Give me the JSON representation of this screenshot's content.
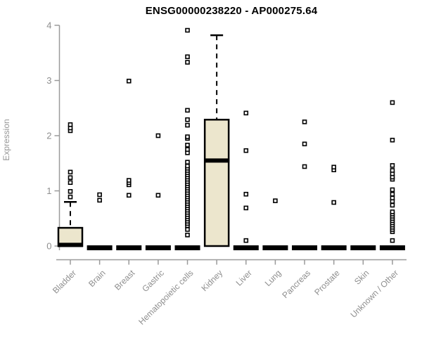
{
  "chart_data": {
    "type": "boxplot",
    "title": "ENSG00000238220 - AP000275.64",
    "ylabel": "Expression",
    "xlabel": "",
    "ylim": [
      0,
      4
    ],
    "yticks": [
      0,
      1,
      2,
      3,
      4
    ],
    "grid": false,
    "legend": "none",
    "categories": [
      "Bladder",
      "Brain",
      "Breast",
      "Gastric",
      "Hematopoietic cells",
      "Kidney",
      "Liver",
      "Lung",
      "Pancreas",
      "Prostate",
      "Skin",
      "Unknown / Other"
    ],
    "boxes": [
      {
        "category": "Bladder",
        "low": 0,
        "q1": 0,
        "median": 0.02,
        "q3": 0.33,
        "high": 0.8,
        "outliers": [
          0.89,
          0.99,
          1.15,
          1.24,
          1.34,
          2.09,
          2.14,
          2.2
        ]
      },
      {
        "category": "Brain",
        "low": 0,
        "q1": 0,
        "median": 0,
        "q3": 0,
        "high": 0,
        "outliers": [
          0.83,
          0.93
        ]
      },
      {
        "category": "Breast",
        "low": 0,
        "q1": 0,
        "median": 0,
        "q3": 0,
        "high": 0,
        "outliers": [
          0.92,
          1.11,
          1.15,
          1.19,
          2.99
        ]
      },
      {
        "category": "Gastric",
        "low": 0,
        "q1": 0,
        "median": 0,
        "q3": 0,
        "high": 0,
        "outliers": [
          0.92,
          2.0
        ]
      },
      {
        "category": "Hematopoietic cells",
        "low": 0,
        "q1": 0,
        "median": 0,
        "q3": 0,
        "high": 0,
        "outliers": [
          0.2,
          0.3,
          0.37,
          0.41,
          0.45,
          0.49,
          0.53,
          0.57,
          0.61,
          0.65,
          0.69,
          0.73,
          0.77,
          0.81,
          0.85,
          0.89,
          0.93,
          0.97,
          1.01,
          1.05,
          1.09,
          1.13,
          1.17,
          1.21,
          1.25,
          1.29,
          1.33,
          1.37,
          1.41,
          1.45,
          1.52,
          1.69,
          1.75,
          1.83,
          1.95,
          1.98,
          2.19,
          2.29,
          2.46,
          3.33,
          3.43,
          3.91
        ]
      },
      {
        "category": "Kidney",
        "low": 0,
        "q1": 0,
        "median": 1.55,
        "q3": 2.29,
        "high": 3.82,
        "outliers": []
      },
      {
        "category": "Liver",
        "low": 0,
        "q1": 0,
        "median": 0,
        "q3": 0,
        "high": 0,
        "outliers": [
          0.1,
          0.69,
          0.94,
          1.73,
          2.41
        ]
      },
      {
        "category": "Lung",
        "low": 0,
        "q1": 0,
        "median": 0,
        "q3": 0,
        "high": 0,
        "outliers": [
          0.82
        ]
      },
      {
        "category": "Pancreas",
        "low": 0,
        "q1": 0,
        "median": 0,
        "q3": 0,
        "high": 0,
        "outliers": [
          1.44,
          1.85,
          2.25
        ]
      },
      {
        "category": "Prostate",
        "low": 0,
        "q1": 0,
        "median": 0,
        "q3": 0,
        "high": 0,
        "outliers": [
          0.79,
          1.38,
          1.43
        ]
      },
      {
        "category": "Skin",
        "low": 0,
        "q1": 0,
        "median": 0,
        "q3": 0,
        "high": 0,
        "outliers": []
      },
      {
        "category": "Unknown / Other",
        "low": 0,
        "q1": 0,
        "median": 0,
        "q3": 0,
        "high": 0,
        "outliers": [
          0.1,
          0.26,
          0.3,
          0.34,
          0.38,
          0.42,
          0.46,
          0.5,
          0.54,
          0.58,
          0.62,
          0.74,
          0.81,
          0.87,
          0.94,
          1.02,
          1.21,
          1.25,
          1.31,
          1.37,
          1.46,
          1.92,
          2.6
        ]
      }
    ],
    "colors": {
      "box_fill": "#ece6cd",
      "box_border": "#000000",
      "median": "#000000",
      "outlier_fill": "#ffffff",
      "axis": "#9a9a9a",
      "tick_label": "#8e8e8e",
      "title": "#000000",
      "background": "#ffffff"
    }
  }
}
